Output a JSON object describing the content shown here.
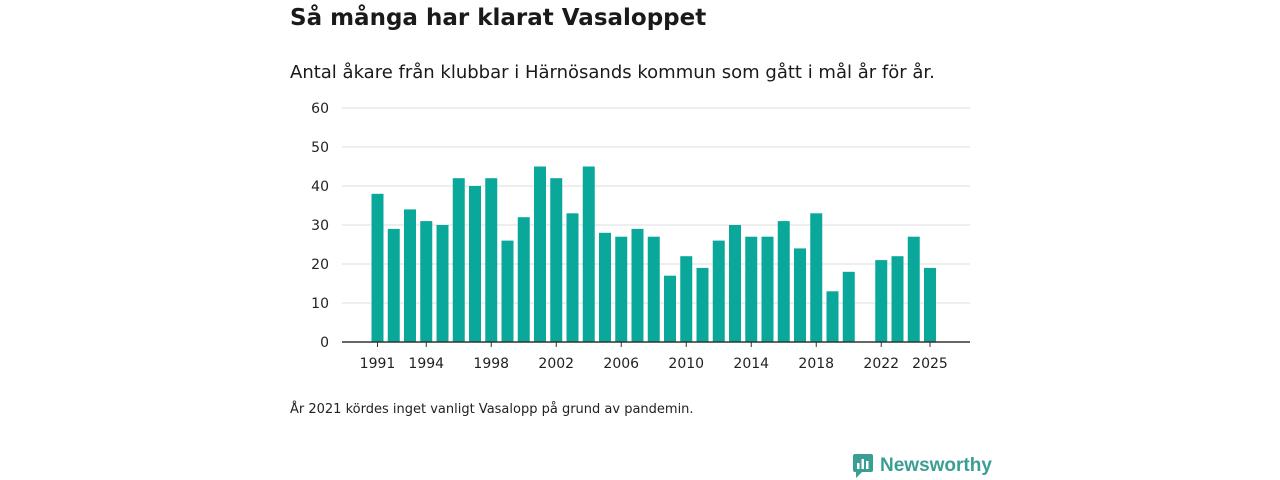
{
  "header": {
    "title": "Så många har klarat Vasaloppet",
    "subtitle": "Antal åkare från klubbar i Härnösands kommun som gått i mål år för år."
  },
  "footer": {
    "note": "År 2021 kördes inget vanligt Vasalopp på grund av pandemin.",
    "brand": "Newsworthy"
  },
  "colors": {
    "bar": "#0aa89b",
    "grid": "#dddddd",
    "axis": "#333333",
    "brand": "#3b9e94"
  },
  "chart_data": {
    "type": "bar",
    "title": "Så många har klarat Vasaloppet",
    "xlabel": "",
    "ylabel": "",
    "ylim": [
      0,
      60
    ],
    "yticks": [
      0,
      10,
      20,
      30,
      40,
      50,
      60
    ],
    "xtick_labels": [
      "1991",
      "1994",
      "1998",
      "2002",
      "2006",
      "2010",
      "2014",
      "2018",
      "2022",
      "2025"
    ],
    "categories": [
      1991,
      1992,
      1993,
      1994,
      1995,
      1996,
      1997,
      1998,
      1999,
      2000,
      2001,
      2002,
      2003,
      2004,
      2005,
      2006,
      2007,
      2008,
      2009,
      2010,
      2011,
      2012,
      2013,
      2014,
      2015,
      2016,
      2017,
      2018,
      2019,
      2020,
      2021,
      2022,
      2023,
      2024,
      2025
    ],
    "values": [
      38,
      29,
      34,
      31,
      30,
      42,
      40,
      42,
      26,
      32,
      45,
      42,
      33,
      45,
      28,
      27,
      29,
      27,
      17,
      22,
      19,
      26,
      30,
      27,
      27,
      31,
      24,
      33,
      13,
      18,
      null,
      21,
      22,
      27,
      19
    ],
    "grid": true
  }
}
